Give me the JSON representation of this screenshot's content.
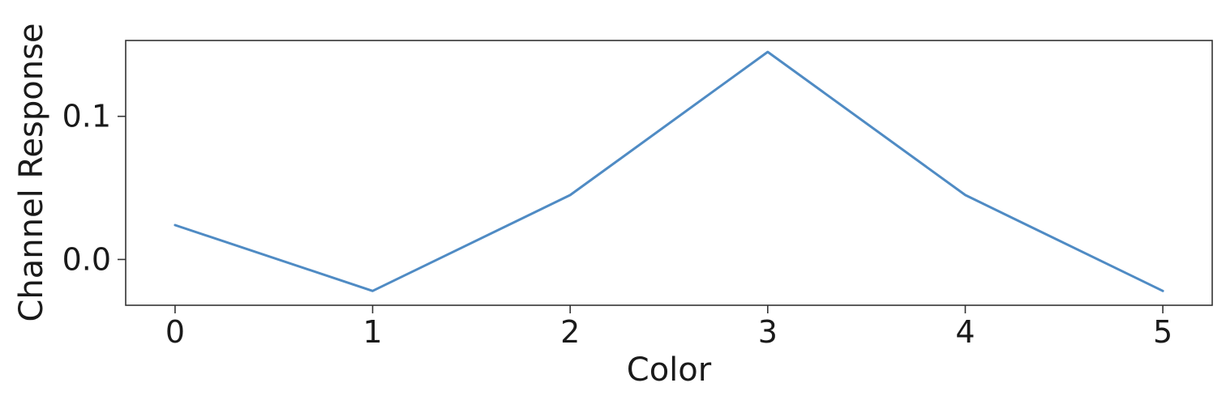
{
  "chart_data": {
    "type": "line",
    "title": "",
    "xlabel": "Color",
    "ylabel": "Channel Response",
    "x": [
      0,
      1,
      2,
      3,
      4,
      5
    ],
    "series": [
      {
        "values": [
          0.024,
          -0.022,
          0.045,
          0.145,
          0.045,
          -0.022
        ],
        "color": "#4f8bc4"
      }
    ],
    "xlim": [
      -0.25,
      5.25
    ],
    "ylim": [
      -0.032,
      0.153
    ],
    "xticks": [
      0,
      1,
      2,
      3,
      4,
      5
    ],
    "xtick_labels": [
      "0",
      "1",
      "2",
      "3",
      "4",
      "5"
    ],
    "yticks": [
      0.0,
      0.1
    ],
    "ytick_labels": [
      "0.0",
      "0.1"
    ],
    "grid": false,
    "legend": "none"
  }
}
